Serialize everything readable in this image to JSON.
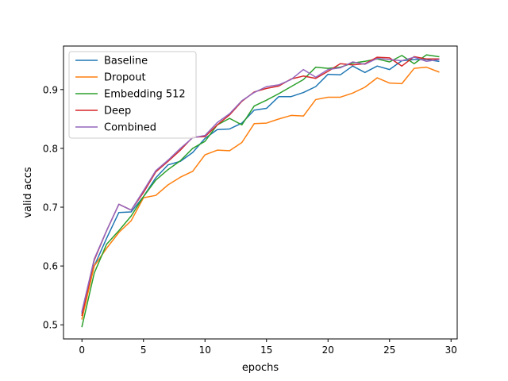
{
  "chart_data": {
    "type": "line",
    "title": "",
    "xlabel": "epochs",
    "ylabel": "valid accs",
    "xlim": [
      -1.5,
      30.5
    ],
    "ylim": [
      0.476,
      0.974
    ],
    "xticks": [
      0,
      5,
      10,
      15,
      20,
      25,
      30
    ],
    "yticks": [
      0.5,
      0.6,
      0.7,
      0.8,
      0.9
    ],
    "grid": false,
    "legend_position": "top-left",
    "x": [
      0,
      1,
      2,
      3,
      4,
      5,
      6,
      7,
      8,
      9,
      10,
      11,
      12,
      13,
      14,
      15,
      16,
      17,
      18,
      19,
      20,
      21,
      22,
      23,
      24,
      25,
      26,
      27,
      28,
      29
    ],
    "series": [
      {
        "name": "Baseline",
        "color": "#1f77b4",
        "values": [
          0.52,
          0.6,
          0.647,
          0.691,
          0.692,
          0.718,
          0.75,
          0.772,
          0.778,
          0.793,
          0.817,
          0.832,
          0.833,
          0.843,
          0.865,
          0.868,
          0.888,
          0.888,
          0.895,
          0.905,
          0.926,
          0.925,
          0.94,
          0.929,
          0.94,
          0.934,
          0.949,
          0.951,
          0.951,
          0.948
        ]
      },
      {
        "name": "Dropout",
        "color": "#ff7f0e",
        "values": [
          0.51,
          0.6,
          0.63,
          0.657,
          0.677,
          0.716,
          0.72,
          0.738,
          0.751,
          0.761,
          0.789,
          0.797,
          0.796,
          0.81,
          0.842,
          0.843,
          0.85,
          0.856,
          0.855,
          0.883,
          0.887,
          0.887,
          0.894,
          0.904,
          0.92,
          0.911,
          0.91,
          0.936,
          0.938,
          0.93
        ]
      },
      {
        "name": "Embedding 512",
        "color": "#2ca02c",
        "values": [
          0.497,
          0.588,
          0.637,
          0.66,
          0.685,
          0.718,
          0.746,
          0.764,
          0.779,
          0.8,
          0.812,
          0.84,
          0.851,
          0.84,
          0.872,
          0.882,
          0.893,
          0.905,
          0.917,
          0.938,
          0.936,
          0.938,
          0.945,
          0.948,
          0.952,
          0.947,
          0.958,
          0.944,
          0.959,
          0.956
        ]
      },
      {
        "name": "Deep",
        "color": "#d62728",
        "values": [
          0.516,
          0.61,
          0.66,
          0.705,
          0.695,
          0.725,
          0.76,
          0.778,
          0.797,
          0.819,
          0.82,
          0.84,
          0.857,
          0.88,
          0.896,
          0.902,
          0.906,
          0.918,
          0.923,
          0.919,
          0.931,
          0.944,
          0.942,
          0.944,
          0.955,
          0.954,
          0.94,
          0.956,
          0.952,
          0.952
        ]
      },
      {
        "name": "Combined",
        "color": "#9467bd",
        "values": [
          0.523,
          0.612,
          0.66,
          0.705,
          0.695,
          0.728,
          0.762,
          0.78,
          0.8,
          0.818,
          0.822,
          0.844,
          0.859,
          0.881,
          0.895,
          0.905,
          0.908,
          0.917,
          0.934,
          0.921,
          0.934,
          0.937,
          0.947,
          0.943,
          0.953,
          0.951,
          0.949,
          0.955,
          0.948,
          0.951
        ]
      }
    ]
  }
}
